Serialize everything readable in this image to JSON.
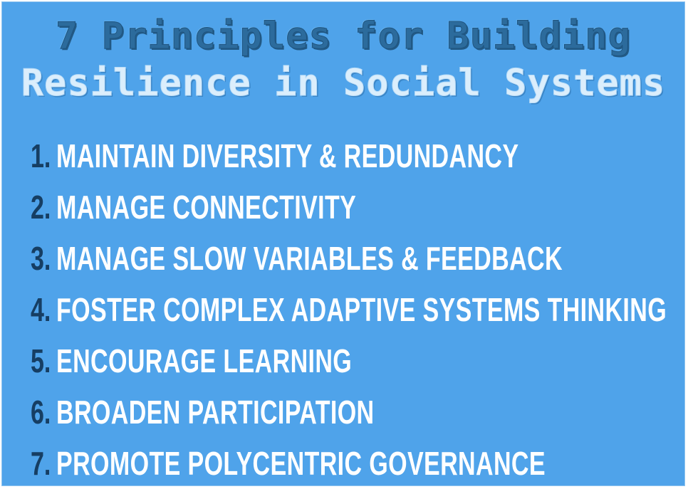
{
  "title": {
    "line1": "7 Principles for Building",
    "line2": "Resilience in Social Systems"
  },
  "principles": [
    {
      "number": "1.",
      "text": "MAINTAIN DIVERSITY & REDUNDANCY"
    },
    {
      "number": "2.",
      "text": "MANAGE CONNECTIVITY"
    },
    {
      "number": "3.",
      "text": "MANAGE SLOW VARIABLES & FEEDBACK"
    },
    {
      "number": "4.",
      "text": "FOSTER COMPLEX ADAPTIVE SYSTEMS THINKING"
    },
    {
      "number": "5.",
      "text": "ENCOURAGE LEARNING"
    },
    {
      "number": "6.",
      "text": "BROADEN PARTICIPATION"
    },
    {
      "number": "7.",
      "text": "PROMOTE POLYCENTRIC GOVERNANCE"
    }
  ],
  "colors": {
    "background": "#4fa3ea",
    "title_line1": "#2c6b9c",
    "title_line2": "#dbeefc",
    "number": "#163e63",
    "item_text": "#ffffff"
  }
}
